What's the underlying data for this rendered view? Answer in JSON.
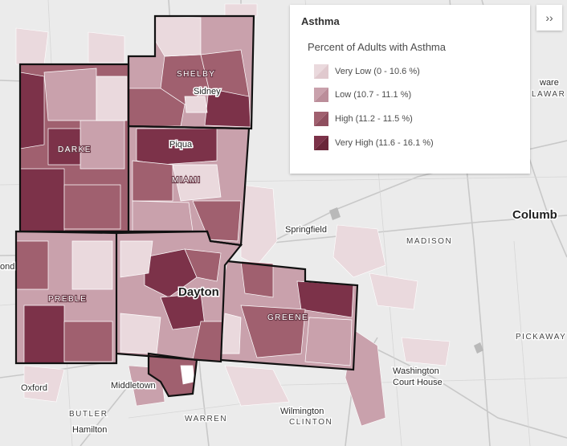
{
  "map": {
    "counties": [
      "SHELBY",
      "DARKE",
      "MIAMI",
      "PREBLE",
      "GREENE",
      "MADISON",
      "BUTLER",
      "WARREN",
      "CLINTON",
      "PICKAWAY"
    ],
    "cities": {
      "sidney": "Sidney",
      "piqua": "Piqua",
      "dayton": "Dayton",
      "springfield": "Springfield",
      "columbus": "Columb",
      "oxford": "Oxford",
      "middletown": "Middletown",
      "hamilton": "Hamilton",
      "wilmington": "Wilmington",
      "washington_ch_1": "Washington",
      "washington_ch_2": "Court House",
      "richmond_frag": "ond",
      "delaware_frag_1": "ware",
      "delaware_frag_2": "LAWAR"
    }
  },
  "legend": {
    "title": "Asthma",
    "subtitle": "Percent of Adults with Asthma",
    "items": [
      {
        "label": "Very Low (0 - 10.6 %)",
        "color": "#ead9dd",
        "value": "very-low"
      },
      {
        "label": "Low (10.7 - 11.1 %)",
        "color": "#c9a1ac",
        "value": "low"
      },
      {
        "label": "High (11.2 - 11.5 %)",
        "color": "#a0606f",
        "value": "high"
      },
      {
        "label": "Very High (11.6 - 16.1 %)",
        "color": "#7c3249",
        "value": "very-high"
      }
    ],
    "collapse_label": "››"
  }
}
